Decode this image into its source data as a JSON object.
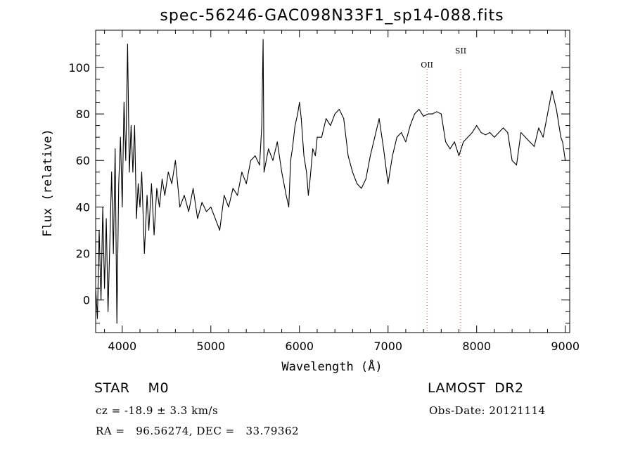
{
  "chart_data": {
    "type": "line",
    "title": "spec-56246-GAC098N33F1_sp14-088.fits",
    "xlabel": "Wavelength (Å)",
    "ylabel": "Flux (relative)",
    "xlim": [
      3700,
      9050
    ],
    "ylim": [
      -14,
      116
    ],
    "xticks": [
      4000,
      5000,
      6000,
      7000,
      8000,
      9000
    ],
    "yticks": [
      0,
      20,
      40,
      60,
      80,
      100
    ],
    "grid": false,
    "series": [
      {
        "x": [
          3700,
          3720,
          3740,
          3760,
          3780,
          3800,
          3820,
          3840,
          3860,
          3880,
          3900,
          3920,
          3940,
          3960,
          3980,
          4000,
          4020,
          4040,
          4060,
          4080,
          4100,
          4120,
          4140,
          4160,
          4180,
          4200,
          4220,
          4250,
          4280,
          4300,
          4330,
          4360,
          4390,
          4420,
          4450,
          4480,
          4520,
          4560,
          4600,
          4650,
          4700,
          4750,
          4800,
          4850,
          4900,
          4950,
          5000,
          5050,
          5100,
          5150,
          5200,
          5250,
          5300,
          5350,
          5400,
          5450,
          5500,
          5550,
          5575,
          5590,
          5600,
          5650,
          5700,
          5750,
          5800,
          5850,
          5880,
          5900,
          5920,
          5950,
          5980,
          6000,
          6020,
          6050,
          6080,
          6100,
          6120,
          6150,
          6180,
          6200,
          6250,
          6300,
          6350,
          6400,
          6450,
          6500,
          6550,
          6600,
          6650,
          6700,
          6750,
          6800,
          6850,
          6900,
          6950,
          7000,
          7050,
          7100,
          7150,
          7200,
          7250,
          7300,
          7350,
          7400,
          7450,
          7500,
          7550,
          7600,
          7650,
          7700,
          7750,
          7800,
          7850,
          7900,
          7950,
          8000,
          8050,
          8100,
          8150,
          8200,
          8250,
          8300,
          8350,
          8400,
          8450,
          8500,
          8550,
          8600,
          8650,
          8700,
          8750,
          8800,
          8850,
          8900,
          8950,
          8970,
          9000
        ],
        "values": [
          5,
          -8,
          30,
          0,
          40,
          5,
          35,
          -5,
          25,
          55,
          20,
          65,
          -10,
          50,
          70,
          40,
          85,
          60,
          110,
          55,
          75,
          55,
          75,
          35,
          50,
          40,
          55,
          20,
          45,
          30,
          50,
          28,
          48,
          40,
          52,
          45,
          55,
          50,
          60,
          40,
          45,
          38,
          48,
          35,
          42,
          38,
          40,
          35,
          30,
          45,
          40,
          48,
          45,
          55,
          50,
          60,
          62,
          58,
          75,
          112,
          55,
          65,
          60,
          68,
          55,
          45,
          40,
          60,
          65,
          75,
          80,
          85,
          78,
          62,
          55,
          45,
          52,
          65,
          62,
          70,
          70,
          78,
          75,
          80,
          82,
          78,
          62,
          55,
          50,
          48,
          52,
          62,
          70,
          78,
          65,
          50,
          62,
          70,
          72,
          68,
          75,
          80,
          82,
          79,
          80,
          80,
          81,
          80,
          68,
          65,
          68,
          62,
          68,
          70,
          72,
          75,
          72,
          71,
          72,
          70,
          72,
          74,
          72,
          60,
          58,
          72,
          70,
          68,
          66,
          74,
          70,
          80,
          90,
          82,
          70,
          68,
          60
        ]
      }
    ],
    "annotations": [
      {
        "label": "OII",
        "x": 7440
      },
      {
        "label": "SII",
        "x": 7820
      }
    ],
    "info": {
      "class_line": "STAR    M0",
      "survey": "LAMOST  DR2",
      "cz": "cz = -18.9 ± 3.3 km/s",
      "obs_date": "Obs-Date: 20121114",
      "radec": "RA =   96.56274, DEC =   33.79362"
    },
    "colors": {
      "line": "#000000",
      "marker": "#cc3333",
      "axis": "#000000"
    }
  }
}
